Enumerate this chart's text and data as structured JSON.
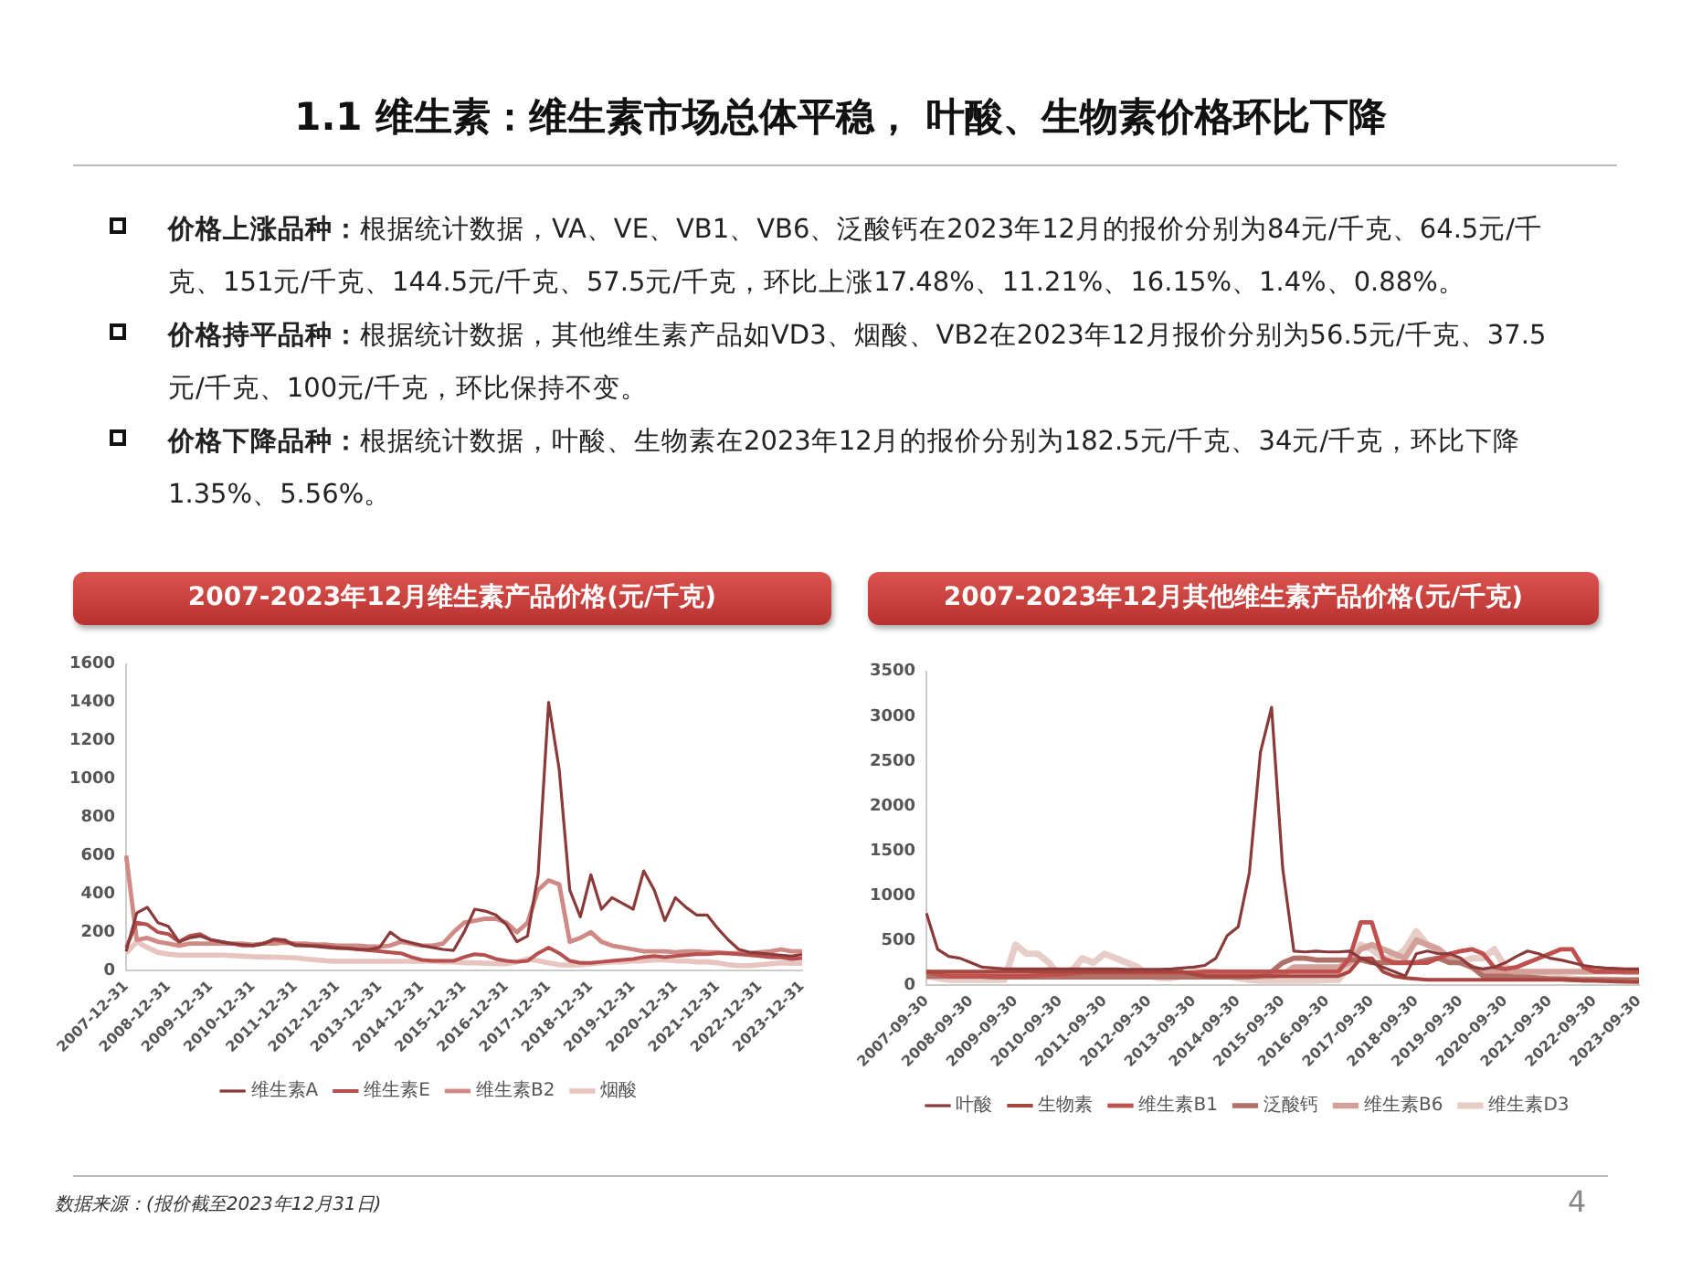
{
  "chart_data": [
    {
      "type": "line",
      "title": "2007-2023年12月维生素产品价格(元/千克)",
      "annotations": [
        "1.1 维生素：维生素市场总体平稳， 叶酸、生物素价格环比下降",
        "价格上涨品种：根据统计数据，VA、VE、VB1、VB6、泛酸钙在2023年12月的报价分别为84元/千克、64.5元/千克、151元/千克、144.5元/千克、57.5元/千克，环比上涨17.48%、11.21%、16.15%、1.4%、0.88%。",
        "价格持平品种：根据统计数据，其他维生素产品如VD3、烟酸、VB2在2023年12月报价分别为56.5元/千克、37.5元/千克、100元/千克，环比保持不变。",
        "价格下降品种：根据统计数据，叶酸、生物素在2023年12月的报价分别为182.5元/千克、34元/千克，环比下降1.35%、5.56%。"
      ],
      "categories": [
        "2007-12-31",
        null,
        null,
        null,
        "2008-12-31",
        null,
        null,
        null,
        "2009-12-31",
        null,
        null,
        null,
        "2010-12-31",
        null,
        null,
        null,
        "2011-12-31",
        null,
        null,
        null,
        "2012-12-31",
        null,
        null,
        null,
        "2013-12-31",
        null,
        null,
        null,
        "2014-12-31",
        null,
        null,
        null,
        "2015-12-31",
        null,
        null,
        null,
        "2016-12-31",
        null,
        null,
        null,
        "2017-12-31",
        null,
        null,
        null,
        "2018-12-31",
        null,
        null,
        null,
        "2019-12-31",
        null,
        null,
        null,
        "2020-12-31",
        null,
        null,
        null,
        "2021-12-31",
        null,
        null,
        null,
        "2022-12-31",
        null,
        null,
        null,
        "2023-12-31"
      ],
      "series": [
        {
          "name": "维生素A",
          "color": "#8b3a3a",
          "values": [
            100,
            300,
            330,
            250,
            230,
            150,
            170,
            180,
            160,
            150,
            140,
            135,
            130,
            140,
            165,
            160,
            130,
            130,
            125,
            120,
            115,
            115,
            110,
            110,
            120,
            200,
            160,
            145,
            130,
            120,
            110,
            105,
            200,
            320,
            310,
            290,
            240,
            150,
            180,
            500,
            1400,
            1050,
            420,
            280,
            500,
            320,
            380,
            350,
            320,
            520,
            420,
            260,
            380,
            330,
            290,
            290,
            220,
            160,
            110,
            95,
            90,
            85,
            80,
            75,
            84
          ]
        },
        {
          "name": "维生素E",
          "color": "#b5504e",
          "values": [
            120,
            250,
            240,
            200,
            190,
            150,
            180,
            190,
            160,
            150,
            140,
            130,
            130,
            140,
            160,
            150,
            135,
            130,
            130,
            125,
            120,
            115,
            110,
            105,
            100,
            95,
            90,
            70,
            55,
            50,
            50,
            50,
            70,
            85,
            80,
            60,
            50,
            45,
            50,
            90,
            120,
            90,
            50,
            40,
            40,
            45,
            50,
            55,
            60,
            70,
            75,
            70,
            75,
            80,
            85,
            85,
            90,
            90,
            85,
            80,
            75,
            70,
            68,
            60,
            65
          ]
        },
        {
          "name": "维生素B2",
          "color": "#d08a85",
          "values": [
            600,
            160,
            170,
            150,
            140,
            130,
            140,
            140,
            140,
            140,
            140,
            140,
            135,
            140,
            140,
            145,
            140,
            140,
            135,
            135,
            130,
            130,
            130,
            125,
            125,
            130,
            150,
            140,
            130,
            130,
            140,
            200,
            250,
            260,
            270,
            270,
            250,
            200,
            250,
            420,
            470,
            450,
            150,
            170,
            200,
            150,
            130,
            120,
            110,
            100,
            100,
            100,
            95,
            100,
            100,
            95,
            95,
            90,
            90,
            90,
            95,
            100,
            110,
            100,
            100
          ]
        },
        {
          "name": "烟酸",
          "color": "#e8c4c0",
          "values": [
            90,
            150,
            120,
            95,
            85,
            80,
            80,
            80,
            80,
            80,
            78,
            75,
            72,
            70,
            70,
            68,
            66,
            60,
            55,
            50,
            48,
            48,
            48,
            48,
            48,
            48,
            48,
            48,
            48,
            48,
            45,
            45,
            40,
            40,
            38,
            35,
            35,
            45,
            60,
            50,
            40,
            30,
            28,
            30,
            35,
            40,
            45,
            45,
            50,
            50,
            55,
            55,
            50,
            50,
            45,
            45,
            40,
            30,
            25,
            25,
            30,
            35,
            40,
            38,
            38
          ]
        }
      ],
      "ylim": [
        0,
        1600
      ],
      "yticks": [
        0,
        200,
        400,
        600,
        800,
        1000,
        1200,
        1400,
        1600
      ],
      "legend": "bottom"
    },
    {
      "type": "line",
      "title": "2007-2023年12月其他维生素产品价格(元/千克)",
      "annotations": [
        "数据来源：(报价截至2023年12月31日)",
        "4"
      ],
      "categories": [
        "2007-09-30",
        null,
        null,
        null,
        "2008-09-30",
        null,
        null,
        null,
        "2009-09-30",
        null,
        null,
        null,
        "2010-09-30",
        null,
        null,
        null,
        "2011-09-30",
        null,
        null,
        null,
        "2012-09-30",
        null,
        null,
        null,
        "2013-09-30",
        null,
        null,
        null,
        "2014-09-30",
        null,
        null,
        null,
        "2015-09-30",
        null,
        null,
        null,
        "2016-09-30",
        null,
        null,
        null,
        "2017-09-30",
        null,
        null,
        null,
        "2018-09-30",
        null,
        null,
        null,
        "2019-09-30",
        null,
        null,
        null,
        "2020-09-30",
        null,
        null,
        null,
        "2021-09-30",
        null,
        null,
        null,
        "2022-09-30",
        null,
        null,
        null,
        "2023-09-30"
      ],
      "series": [
        {
          "name": "叶酸",
          "color": "#8b3a3a",
          "values": [
            800,
            400,
            320,
            300,
            250,
            200,
            190,
            180,
            180,
            180,
            180,
            180,
            180,
            180,
            180,
            180,
            180,
            180,
            175,
            175,
            175,
            175,
            180,
            190,
            200,
            220,
            300,
            550,
            650,
            1250,
            2600,
            3100,
            1300,
            380,
            370,
            380,
            370,
            370,
            380,
            300,
            250,
            200,
            150,
            100,
            350,
            380,
            350,
            350,
            300,
            200,
            180,
            200,
            250,
            320,
            380,
            350,
            300,
            280,
            250,
            220,
            200,
            190,
            185,
            180,
            180
          ]
        },
        {
          "name": "生物素",
          "color": "#a8453f",
          "values": [
            150,
            150,
            150,
            150,
            150,
            150,
            150,
            150,
            150,
            150,
            150,
            150,
            150,
            150,
            150,
            150,
            150,
            150,
            150,
            150,
            150,
            150,
            150,
            150,
            120,
            100,
            100,
            100,
            100,
            100,
            100,
            100,
            100,
            100,
            100,
            100,
            100,
            100,
            150,
            300,
            300,
            150,
            100,
            80,
            70,
            60,
            60,
            60,
            60,
            60,
            60,
            60,
            60,
            60,
            60,
            60,
            60,
            60,
            60,
            50,
            50,
            45,
            40,
            35,
            34
          ]
        },
        {
          "name": "维生素B1",
          "color": "#c0504d",
          "values": [
            150,
            120,
            100,
            100,
            100,
            100,
            100,
            100,
            100,
            100,
            110,
            120,
            120,
            130,
            140,
            140,
            140,
            140,
            140,
            140,
            140,
            140,
            140,
            140,
            140,
            150,
            150,
            150,
            150,
            150,
            150,
            150,
            150,
            150,
            150,
            150,
            150,
            150,
            300,
            700,
            700,
            300,
            250,
            250,
            250,
            250,
            300,
            350,
            380,
            400,
            350,
            200,
            180,
            200,
            250,
            300,
            350,
            400,
            400,
            200,
            150,
            150,
            150,
            150,
            151
          ]
        },
        {
          "name": "泛酸钙",
          "color": "#b07068",
          "values": [
            100,
            100,
            100,
            100,
            100,
            100,
            90,
            90,
            90,
            90,
            90,
            90,
            90,
            90,
            90,
            90,
            90,
            90,
            90,
            90,
            90,
            90,
            90,
            90,
            90,
            90,
            90,
            90,
            90,
            90,
            100,
            150,
            250,
            300,
            300,
            280,
            280,
            280,
            280,
            280,
            250,
            250,
            250,
            250,
            250,
            280,
            300,
            250,
            250,
            200,
            100,
            100,
            100,
            90,
            90,
            80,
            70,
            70,
            60,
            60,
            60,
            58,
            58,
            57,
            57.5
          ]
        },
        {
          "name": "维生素B6",
          "color": "#d4a09a",
          "values": [
            100,
            100,
            100,
            100,
            100,
            100,
            100,
            100,
            100,
            100,
            100,
            100,
            100,
            100,
            100,
            100,
            100,
            100,
            100,
            100,
            100,
            100,
            100,
            100,
            100,
            100,
            100,
            100,
            100,
            100,
            100,
            100,
            120,
            200,
            200,
            200,
            200,
            200,
            250,
            400,
            450,
            400,
            350,
            300,
            500,
            450,
            400,
            300,
            250,
            200,
            150,
            150,
            150,
            150,
            150,
            150,
            150,
            150,
            150,
            150,
            150,
            150,
            150,
            145,
            144.5
          ]
        },
        {
          "name": "维生素D3",
          "color": "#e6cdc8",
          "values": [
            100,
            80,
            60,
            60,
            60,
            60,
            60,
            60,
            450,
            350,
            350,
            250,
            100,
            150,
            300,
            250,
            350,
            300,
            250,
            200,
            100,
            80,
            80,
            100,
            150,
            150,
            150,
            100,
            80,
            60,
            50,
            50,
            50,
            50,
            50,
            50,
            60,
            60,
            200,
            450,
            400,
            300,
            300,
            400,
            600,
            450,
            400,
            300,
            250,
            300,
            300,
            400,
            200,
            150,
            100,
            100,
            80,
            80,
            70,
            60,
            60,
            60,
            56,
            56,
            56.5
          ]
        }
      ],
      "ylim": [
        0,
        3500
      ],
      "yticks": [
        0,
        500,
        1000,
        1500,
        2000,
        2500,
        3000,
        3500
      ],
      "legend": "bottom"
    }
  ]
}
